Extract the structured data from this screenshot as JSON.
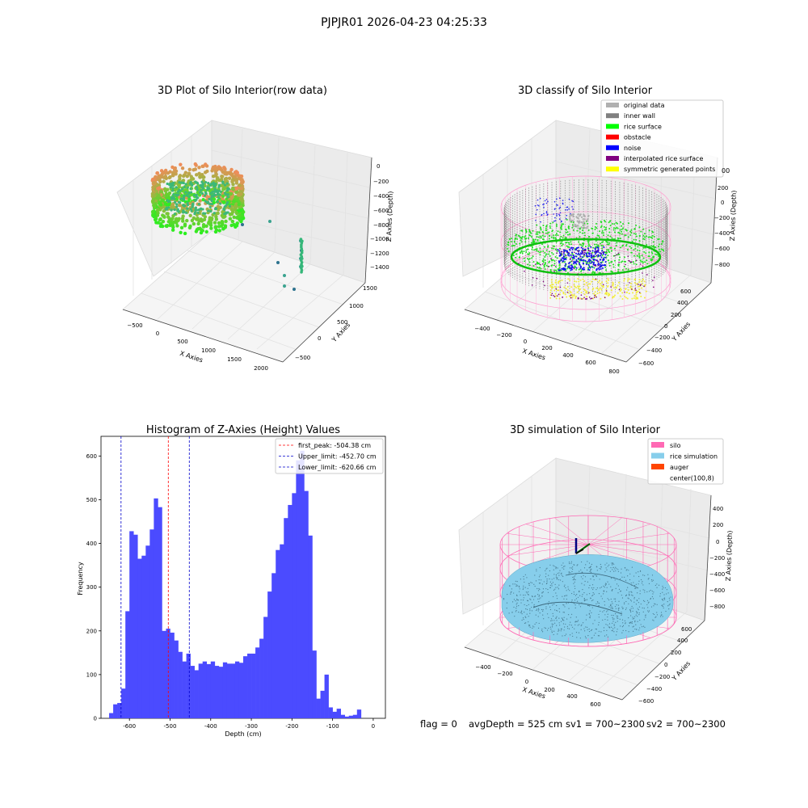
{
  "figure_title": "PJPJR01 2026-04-23 04:25:33",
  "status_line": {
    "flag": "flag = 0",
    "avg_depth": "avgDepth = 525 cm",
    "sv1": "sv1 = 700~2300",
    "sv2": "sv2 = 700~2300"
  },
  "colors": {
    "histogram": "#4b4bff",
    "first_peak": "#ff0000",
    "limits": "#0000cc",
    "original": "#b0b0b0",
    "inner_wall": "#808080",
    "rice_surface": "#00ff00",
    "obstacle": "#ff0000",
    "noise": "#0000ff",
    "interpolated": "#800080",
    "symmetric": "#ffff00",
    "silo": "#ff69b4",
    "rice_sim": "#87ceeb",
    "auger": "#ff4500"
  },
  "chart_data": [
    {
      "type": "scatter",
      "title": "3D Plot of Silo Interior(row data)",
      "xlabel": "X Axies",
      "ylabel": "Y Axies",
      "zlabel": "Z Axies (Depth)",
      "xticks": [
        "−500",
        "0",
        "500",
        "1000",
        "1500",
        "2000"
      ],
      "yticks": [
        "−500",
        "0",
        "500",
        "1000",
        "1500"
      ],
      "zticks": [
        "0",
        "−200",
        "−400",
        "−600",
        "−800",
        "−1000",
        "−1200",
        "−1400"
      ]
    },
    {
      "type": "scatter",
      "title": "3D classify of Silo Interior",
      "xlabel": "X Axies",
      "ylabel": "Y Axies",
      "zlabel": "Z Axies (Depth)",
      "xticks": [
        "−400",
        "−200",
        "0",
        "200",
        "400",
        "600",
        "800"
      ],
      "yticks": [
        "600",
        "400",
        "200",
        "0",
        "−200",
        "−400",
        "−600"
      ],
      "zticks": [
        "200",
        "0",
        "−200",
        "−400",
        "−600",
        "−800"
      ],
      "legend": [
        {
          "label": "original data",
          "color": "#b0b0b0"
        },
        {
          "label": "inner wall",
          "color": "#808080"
        },
        {
          "label": "rice surface",
          "color": "#00ff00"
        },
        {
          "label": "obstacle",
          "color": "#ff0000"
        },
        {
          "label": "noise",
          "color": "#0000ff"
        },
        {
          "label": "interpolated rice surface",
          "color": "#800080"
        },
        {
          "label": "symmetric generated points",
          "color": "#ffff00"
        }
      ],
      "legend_extra": "00"
    },
    {
      "type": "bar",
      "title": "Histogram of Z-Axies (Height) Values",
      "xlabel": "Depth (cm)",
      "ylabel": "Frequency",
      "xlim": [
        -670,
        30
      ],
      "ylim": [
        0,
        645
      ],
      "xticks": [
        -600,
        -500,
        -400,
        -300,
        -200,
        -100,
        0
      ],
      "yticks": [
        0,
        100,
        200,
        300,
        400,
        500,
        600
      ],
      "bin_start": -650,
      "bin_width": 10,
      "values": [
        12,
        32,
        35,
        68,
        245,
        428,
        420,
        365,
        372,
        395,
        432,
        503,
        483,
        200,
        205,
        196,
        178,
        152,
        130,
        148,
        120,
        110,
        125,
        130,
        124,
        130,
        120,
        118,
        128,
        125,
        125,
        130,
        127,
        142,
        148,
        148,
        162,
        182,
        232,
        290,
        332,
        385,
        398,
        458,
        488,
        515,
        590,
        612,
        520,
        418,
        155,
        45,
        63,
        100,
        25,
        15,
        22,
        8,
        4,
        6,
        8,
        20
      ],
      "lines": [
        {
          "label": "first_peak: -504.38 cm",
          "x": -504.38,
          "color": "#ff0000"
        },
        {
          "label": "Upper_limit: -452.70 cm",
          "x": -452.7,
          "color": "#0000cc"
        },
        {
          "label": "Lower_limit: -620.66 cm",
          "x": -620.66,
          "color": "#0000cc"
        }
      ],
      "legend_placement": "top-right"
    },
    {
      "type": "scatter",
      "title": "3D simulation of Silo Interior",
      "xlabel": "X Axies",
      "ylabel": "Y Axies",
      "zlabel": "Z Axies (Depth)",
      "xticks": [
        "−400",
        "−200",
        "0",
        "200",
        "400",
        "600"
      ],
      "yticks": [
        "600",
        "400",
        "200",
        "0",
        "−200",
        "−400",
        "−600"
      ],
      "zticks": [
        "400",
        "200",
        "0",
        "−200",
        "−400",
        "−600",
        "−800"
      ],
      "legend": [
        {
          "label": "silo",
          "color": "#ff69b4"
        },
        {
          "label": "rice simulation",
          "color": "#87ceeb"
        },
        {
          "label": "auger",
          "color": "#ff4500"
        },
        {
          "label": "center(100,8)",
          "color": ""
        }
      ]
    }
  ]
}
